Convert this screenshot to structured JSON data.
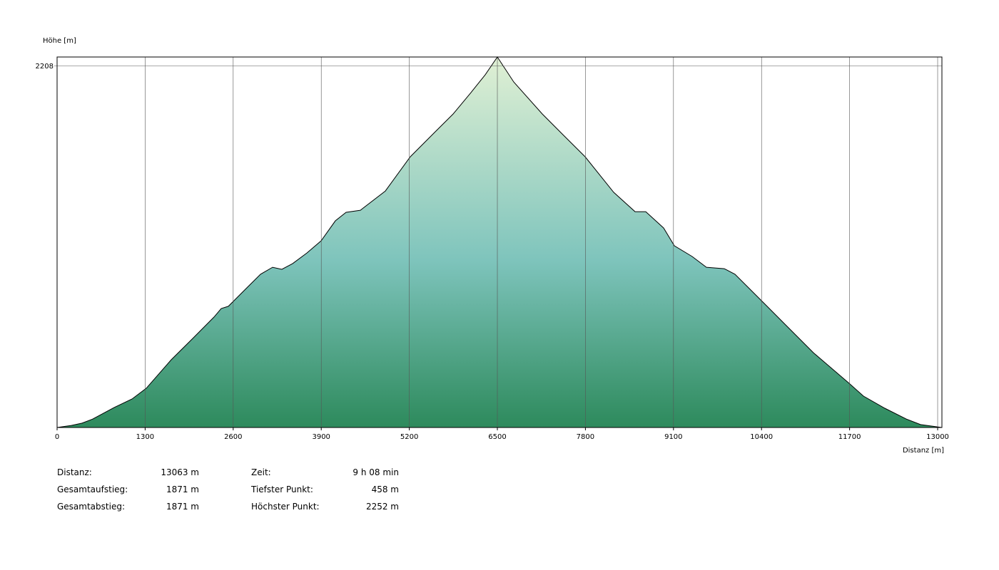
{
  "chart_data": {
    "type": "area",
    "y_label": "Höhe [m]",
    "x_label": "Distanz [m]",
    "x": [
      0,
      211,
      369,
      527,
      843,
      1106,
      1317,
      1686,
      2002,
      2318,
      2423,
      2528,
      2792,
      3003,
      3181,
      3318,
      3477,
      3687,
      3898,
      4109,
      4267,
      4477,
      4846,
      5215,
      5583,
      5847,
      6110,
      6321,
      6500,
      6742,
      7164,
      7480,
      7796,
      8217,
      8533,
      8691,
      8954,
      9112,
      9376,
      9587,
      9850,
      10008,
      10219,
      10482,
      10746,
      11167,
      11694,
      11904,
      12220,
      12536,
      12747,
      13063
    ],
    "values": [
      458,
      468,
      479,
      499,
      555,
      596,
      648,
      786,
      889,
      993,
      1034,
      1045,
      1131,
      1200,
      1234,
      1224,
      1252,
      1303,
      1362,
      1459,
      1500,
      1510,
      1603,
      1769,
      1890,
      1976,
      2080,
      2166,
      2252,
      2131,
      1976,
      1872,
      1769,
      1597,
      1503,
      1503,
      1424,
      1338,
      1286,
      1234,
      1227,
      1200,
      1131,
      1045,
      958,
      820,
      672,
      610,
      551,
      499,
      472,
      458
    ],
    "xlim": [
      0,
      13063
    ],
    "ylim": [
      458,
      2252
    ],
    "xticks": [
      0,
      1300,
      2600,
      3900,
      5200,
      6500,
      7800,
      9100,
      10400,
      11700,
      13000
    ],
    "yticks": [
      2208
    ],
    "grid": true,
    "colors": {
      "top": "#e0f0d4",
      "middle": "#7ec4bc",
      "bottom": "#2d8a5c",
      "line": "#000000"
    }
  },
  "stats": [
    {
      "label": "Distanz:",
      "value": "13063 m"
    },
    {
      "label": "Gesamtaufstieg:",
      "value": "1871 m"
    },
    {
      "label": "Gesamtabstieg:",
      "value": "1871 m"
    },
    {
      "label": "Zeit:",
      "value": "9 h 08 min"
    },
    {
      "label": "Tiefster Punkt:",
      "value": "458 m"
    },
    {
      "label": "Höchster Punkt:",
      "value": "2252 m"
    }
  ]
}
